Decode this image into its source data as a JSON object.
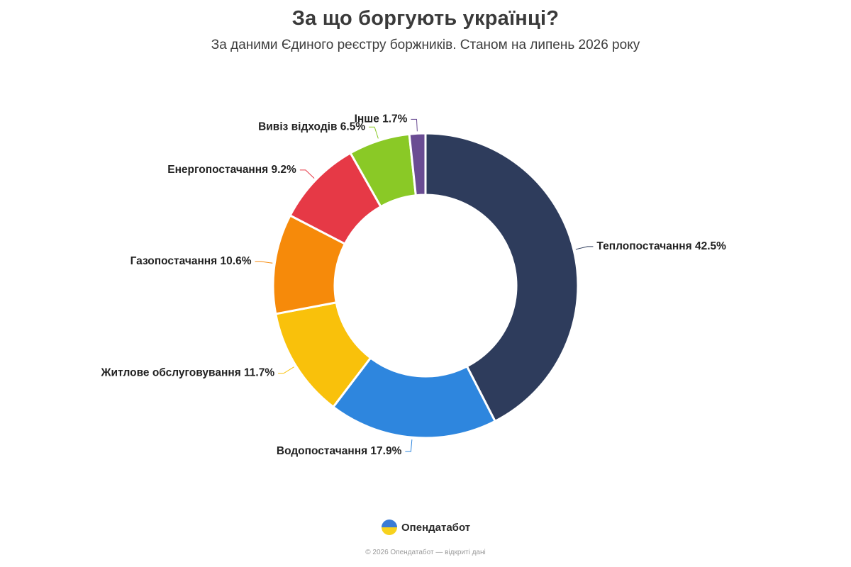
{
  "header": {
    "title": "За що боргують українці?",
    "subtitle": "За даними Єдиного реєстру боржників. Станом на липень 2026 року"
  },
  "chart_data": {
    "type": "pie",
    "donut": true,
    "title": "За що боргують українці?",
    "subtitle": "За даними Єдиного реєстру боржників. Станом на липень 2026 року",
    "unit": "%",
    "slices": [
      {
        "label": "Теплопостачання",
        "value": 42.5,
        "color": "#2e3c5c"
      },
      {
        "label": "Водопостачання",
        "value": 17.9,
        "color": "#2e86de"
      },
      {
        "label": "Житлове обслуговування",
        "value": 11.7,
        "color": "#f9c10b"
      },
      {
        "label": "Газопостачання",
        "value": 10.6,
        "color": "#f68a0a"
      },
      {
        "label": "Енергопостачання",
        "value": 9.2,
        "color": "#e63946"
      },
      {
        "label": "Вивіз відходів",
        "value": 6.5,
        "color": "#8ac926"
      },
      {
        "label": "Інше",
        "value": 1.7,
        "color": "#6a4c93"
      }
    ]
  },
  "branding": {
    "logo_text": "Опендатабот",
    "footer": "© 2026 Опендатабот — відкриті дані"
  }
}
